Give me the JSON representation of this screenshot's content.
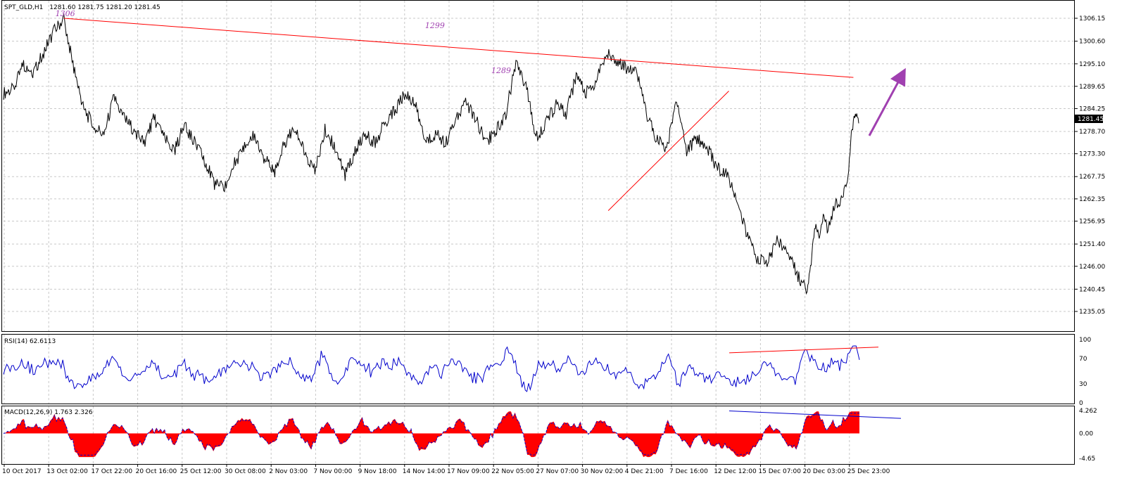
{
  "header": {
    "symbol": "SPT_GLD,H1",
    "ohlc": "1281.60 1281.75 1281.20 1281.45"
  },
  "colors": {
    "price": "#000000",
    "grid": "#c8c8c8",
    "trendline": "#ff0000",
    "rsi": "#0000cc",
    "macd_hist": "#ff0000",
    "macd_signal": "#0000cc",
    "annotation": "#a040b0"
  },
  "chart_data": [
    {
      "type": "line",
      "panel": "price",
      "series_label": "SPT_GLD,H1",
      "ylim": [
        1235.05,
        1309.0
      ],
      "y_ticks": [
        "1306.15",
        "1300.60",
        "1295.10",
        "1289.65",
        "1284.25",
        "1278.70",
        "1273.30",
        "1267.75",
        "1262.35",
        "1256.95",
        "1251.40",
        "1246.00",
        "1240.45",
        "1235.05"
      ],
      "current_price": "1281.45",
      "x_ticks": [
        "10 Oct 2017",
        "13 Oct 02:00",
        "17 Oct 22:00",
        "20 Oct 16:00",
        "25 Oct 12:00",
        "30 Oct 08:00",
        "2 Nov 03:00",
        "7 Nov 00:00",
        "9 Nov 18:00",
        "14 Nov 14:00",
        "17 Nov 09:00",
        "22 Nov 05:00",
        "27 Nov 07:00",
        "30 Nov 02:00",
        "4 Dec 21:00",
        "7 Dec 16:00",
        "12 Dec 12:00",
        "15 Dec 07:00",
        "20 Dec 03:00",
        "25 Dec 23:00"
      ],
      "x": [
        0,
        5,
        10,
        15,
        20,
        25,
        30,
        35,
        40,
        45,
        50,
        55,
        60,
        65,
        70,
        75,
        80,
        85,
        90,
        95,
        100,
        105,
        110,
        115,
        120,
        125,
        130,
        135,
        140,
        145,
        150,
        155,
        160,
        165,
        170,
        175,
        180,
        185,
        190,
        195,
        200,
        205,
        210,
        215,
        220,
        225,
        230,
        235,
        240,
        245,
        250,
        255,
        260,
        265,
        270,
        275,
        280,
        285,
        290,
        295,
        300,
        305,
        310,
        315,
        320,
        325,
        330,
        335,
        340,
        345,
        350,
        355,
        360,
        365,
        370,
        375,
        380,
        385,
        390,
        395,
        400
      ],
      "close": [
        1288,
        1289,
        1295,
        1293,
        1298,
        1303,
        1306,
        1294,
        1284,
        1280,
        1278,
        1287,
        1282,
        1279,
        1276,
        1282,
        1277,
        1274,
        1280,
        1276,
        1272,
        1266,
        1265,
        1271,
        1275,
        1278,
        1272,
        1269,
        1276,
        1280,
        1273,
        1269,
        1279,
        1275,
        1268,
        1274,
        1278,
        1276,
        1281,
        1284,
        1288,
        1285,
        1276,
        1278,
        1276,
        1281,
        1286,
        1282,
        1276,
        1279,
        1283,
        1295,
        1290,
        1277,
        1281,
        1285,
        1283,
        1292,
        1288,
        1291,
        1298,
        1296,
        1294,
        1294,
        1283,
        1277,
        1274,
        1287,
        1274,
        1277,
        1275,
        1270,
        1268,
        1262,
        1254,
        1248,
        1247,
        1252,
        1250,
        1244,
        1240
      ],
      "annotations": [
        {
          "text": "1306",
          "at_x": 30
        },
        {
          "text": "1299",
          "at_x": 214
        },
        {
          "text": "1289",
          "at_x": 247
        }
      ],
      "trendlines": [
        {
          "from": [
            30,
            1306.15
          ],
          "to": [
            423,
            1291.8
          ],
          "color": "#ff0000"
        },
        {
          "from": [
            301,
            1259.5
          ],
          "to": [
            361,
            1288.5
          ],
          "color": "#ff0000"
        }
      ]
    },
    {
      "type": "line",
      "panel": "rsi",
      "series_label": "RSI(14) 62.6113",
      "ylim": [
        0,
        100
      ],
      "y_ticks": [
        "100",
        "70",
        "30",
        "0"
      ]
    },
    {
      "type": "bar",
      "panel": "macd",
      "series_label": "MACD(12,26,9) 1.763 2.326",
      "ylim": [
        -4.65,
        4.262
      ],
      "y_ticks": [
        "4.262",
        "0.00",
        "-4.65"
      ]
    }
  ]
}
